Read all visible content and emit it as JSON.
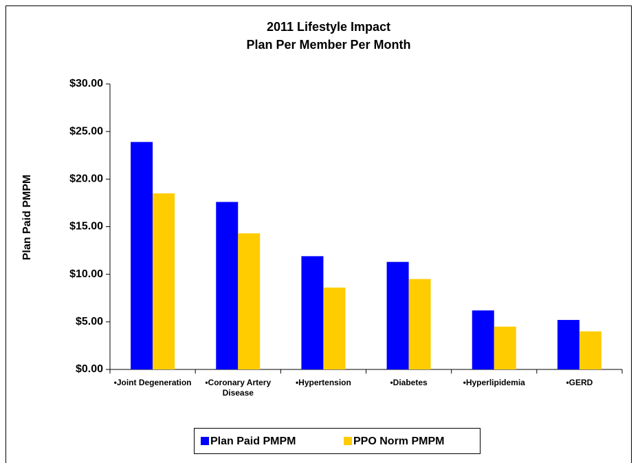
{
  "chart_data": {
    "type": "bar",
    "title": "2011 Lifestyle Impact",
    "subtitle": "Plan Per Member Per Month",
    "y_label": "Plan Paid PMPM",
    "categories": [
      "•Joint Degeneration",
      "•Coronary Artery Disease",
      "•Hypertension",
      "•Diabetes",
      "•Hyperlipidemia",
      "•GERD"
    ],
    "series": [
      {
        "name": "Plan Paid PMPM",
        "color": "#0000ff",
        "values": [
          23.9,
          17.6,
          11.9,
          11.3,
          6.2,
          5.2
        ]
      },
      {
        "name": "PPO Norm PMPM",
        "color": "#ffcc00",
        "values": [
          18.5,
          14.3,
          8.6,
          9.5,
          4.5,
          4.0
        ]
      }
    ],
    "ylim": [
      0,
      30
    ],
    "yticks": [
      {
        "value": 0,
        "label": "$0.00"
      },
      {
        "value": 5,
        "label": "$5.00"
      },
      {
        "value": 10,
        "label": "$10.00"
      },
      {
        "value": 15,
        "label": "$15.00"
      },
      {
        "value": 20,
        "label": "$20.00"
      },
      {
        "value": 25,
        "label": "$25.00"
      },
      {
        "value": 30,
        "label": "$30.00"
      }
    ],
    "grid": false,
    "legend": "bottom"
  }
}
